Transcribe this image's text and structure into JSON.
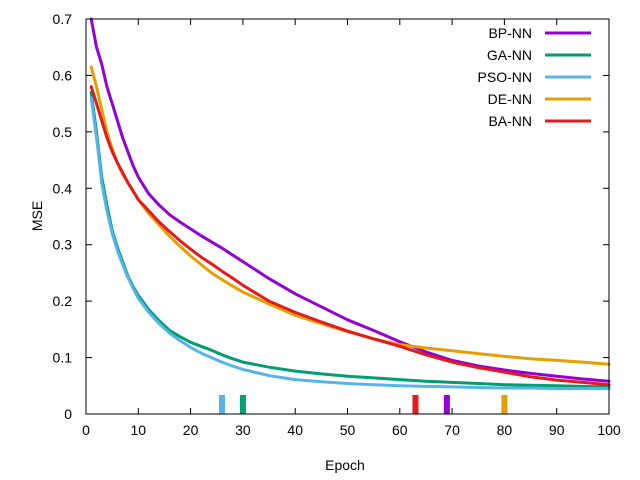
{
  "chart_data": {
    "type": "line",
    "title": "",
    "xlabel": "Epoch",
    "ylabel": "MSE",
    "xlim": [
      0,
      100
    ],
    "ylim": [
      0,
      0.7
    ],
    "xticks": [
      0,
      10,
      20,
      30,
      40,
      50,
      60,
      70,
      80,
      90,
      100
    ],
    "yticks": [
      0,
      0.1,
      0.2,
      0.3,
      0.4,
      0.5,
      0.6,
      0.7
    ],
    "x": [
      1,
      2,
      3,
      4,
      5,
      6,
      7,
      8,
      9,
      10,
      12,
      14,
      16,
      18,
      20,
      22,
      24,
      26,
      28,
      30,
      35,
      40,
      45,
      50,
      55,
      60,
      65,
      70,
      75,
      80,
      85,
      90,
      95,
      100
    ],
    "legend_position": "top-right",
    "series": [
      {
        "name": "BP-NN",
        "color": "#9400d3",
        "values": [
          0.7,
          0.65,
          0.62,
          0.58,
          0.55,
          0.52,
          0.49,
          0.465,
          0.44,
          0.42,
          0.39,
          0.37,
          0.353,
          0.34,
          0.328,
          0.316,
          0.305,
          0.294,
          0.282,
          0.27,
          0.24,
          0.213,
          0.19,
          0.167,
          0.148,
          0.128,
          0.11,
          0.095,
          0.085,
          0.078,
          0.072,
          0.067,
          0.062,
          0.058
        ],
        "marker_x": 69
      },
      {
        "name": "GA-NN",
        "color": "#009e73",
        "values": [
          0.57,
          0.5,
          0.42,
          0.37,
          0.325,
          0.295,
          0.27,
          0.245,
          0.226,
          0.21,
          0.185,
          0.165,
          0.148,
          0.137,
          0.127,
          0.12,
          0.113,
          0.105,
          0.098,
          0.092,
          0.083,
          0.076,
          0.071,
          0.067,
          0.064,
          0.061,
          0.058,
          0.056,
          0.054,
          0.052,
          0.051,
          0.05,
          0.049,
          0.048
        ],
        "marker_x": 30
      },
      {
        "name": "PSO-NN",
        "color": "#56b4e9",
        "values": [
          0.56,
          0.49,
          0.41,
          0.36,
          0.32,
          0.29,
          0.265,
          0.242,
          0.223,
          0.205,
          0.18,
          0.16,
          0.143,
          0.13,
          0.118,
          0.108,
          0.1,
          0.092,
          0.085,
          0.079,
          0.068,
          0.061,
          0.057,
          0.054,
          0.052,
          0.05,
          0.049,
          0.048,
          0.047,
          0.046,
          0.046,
          0.045,
          0.045,
          0.045
        ],
        "marker_x": 26
      },
      {
        "name": "DE-NN",
        "color": "#e69f00",
        "values": [
          0.615,
          0.58,
          0.54,
          0.5,
          0.47,
          0.445,
          0.425,
          0.41,
          0.395,
          0.38,
          0.355,
          0.335,
          0.315,
          0.297,
          0.28,
          0.265,
          0.25,
          0.238,
          0.227,
          0.216,
          0.195,
          0.175,
          0.16,
          0.146,
          0.133,
          0.123,
          0.117,
          0.112,
          0.107,
          0.102,
          0.098,
          0.095,
          0.092,
          0.088
        ],
        "marker_x": 80
      },
      {
        "name": "BA-NN",
        "color": "#e41a1c",
        "values": [
          0.58,
          0.55,
          0.52,
          0.49,
          0.465,
          0.445,
          0.428,
          0.41,
          0.395,
          0.38,
          0.36,
          0.34,
          0.323,
          0.307,
          0.292,
          0.278,
          0.266,
          0.253,
          0.241,
          0.228,
          0.2,
          0.18,
          0.163,
          0.147,
          0.133,
          0.12,
          0.105,
          0.092,
          0.082,
          0.074,
          0.066,
          0.06,
          0.056,
          0.052
        ],
        "marker_x": 63
      }
    ]
  }
}
